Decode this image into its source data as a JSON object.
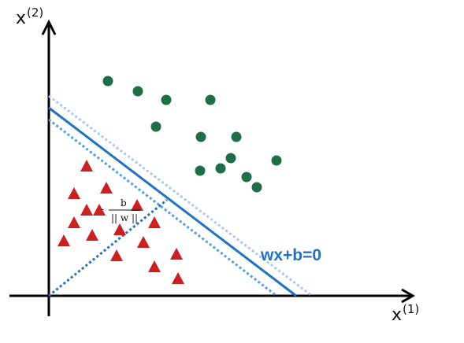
{
  "colors": {
    "axis": "#000000",
    "hyperplane": "#1f72c4",
    "margin_upper": "#a9c8ec",
    "margin_lower": "#4f9fe0",
    "positive_points": "#1f6e4a",
    "negative_points": "#cc1f1f"
  },
  "axes": {
    "x_label": "x",
    "x_sup": "(1)",
    "y_label": "x",
    "y_sup": "(2)"
  },
  "hyperplane": {
    "equation": "wx+b=0"
  },
  "offset_annotation": {
    "sign": "-",
    "numerator": "b",
    "denominator": "|| w ||"
  },
  "icons": {
    "positive": "circle",
    "negative": "triangle"
  }
}
